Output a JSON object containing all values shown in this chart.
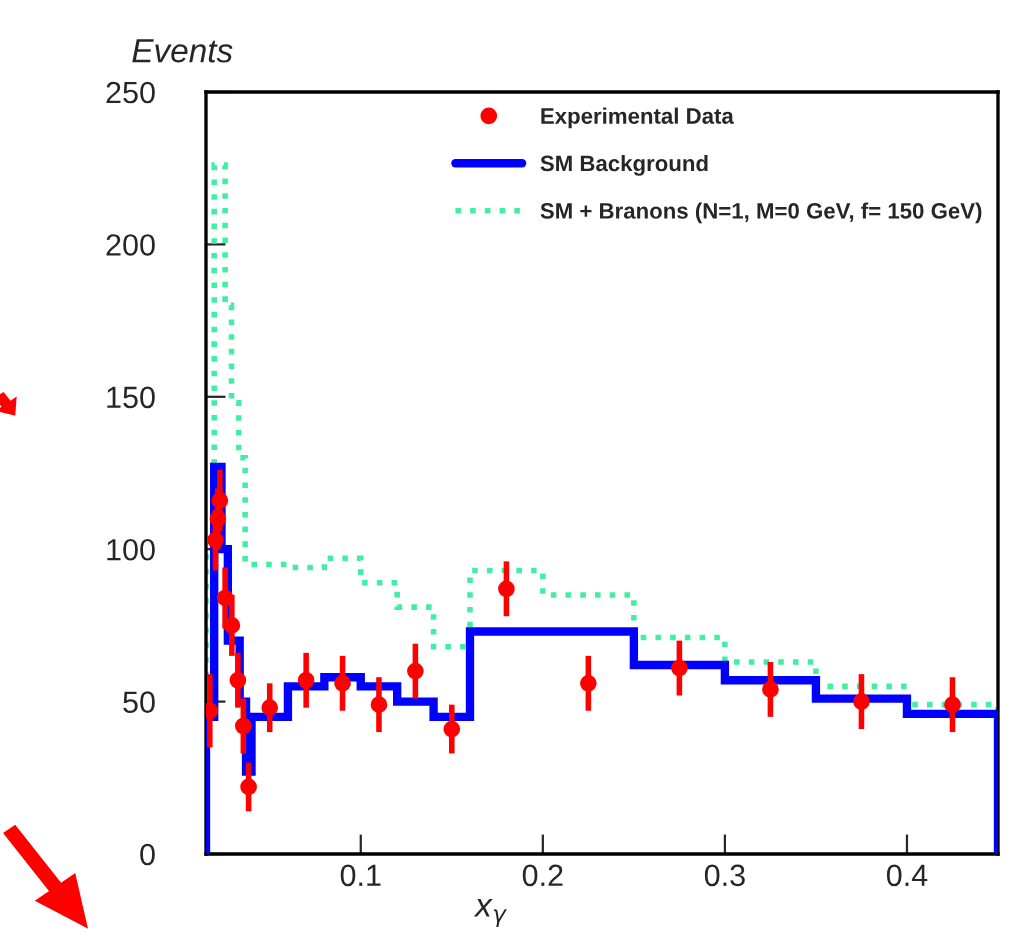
{
  "chart_data": {
    "type": "histogram",
    "xlabel": "x$_{γ}$",
    "ylabel": "Events",
    "xlim": [
      0.015,
      0.45
    ],
    "ylim": [
      0,
      250
    ],
    "xticks": [
      0.1,
      0.2,
      0.3,
      0.4
    ],
    "yticks": [
      0,
      50,
      100,
      150,
      200,
      250
    ],
    "grid": false,
    "legend": "top right",
    "series": [
      {
        "name": "Experimental Data",
        "type": "scatter",
        "color": "#ff0000",
        "marker": "circle",
        "x": [
          0.0171,
          0.0202,
          0.0215,
          0.0226,
          0.0255,
          0.0292,
          0.0325,
          0.0355,
          0.0384,
          0.05,
          0.07,
          0.09,
          0.11,
          0.13,
          0.15,
          0.18,
          0.225,
          0.275,
          0.325,
          0.375,
          0.425
        ],
        "values": [
          47,
          103,
          110,
          116,
          84,
          75,
          57,
          42,
          22,
          48,
          57,
          56,
          49,
          60,
          41,
          87,
          56,
          61,
          54,
          50,
          49
        ],
        "errors": [
          12,
          10,
          10,
          10,
          10,
          10,
          9,
          9,
          8,
          8,
          9,
          9,
          9,
          9,
          8,
          9,
          9,
          9,
          9,
          9,
          9
        ]
      },
      {
        "name": "SM Background",
        "color": "#0000ff",
        "line_style": "solid",
        "bins": [
          0.015,
          0.0195,
          0.0235,
          0.027,
          0.0335,
          0.037,
          0.04,
          0.06,
          0.08,
          0.1,
          0.12,
          0.14,
          0.16,
          0.25,
          0.3,
          0.35,
          0.4,
          0.45
        ],
        "values": [
          45,
          127,
          100,
          70,
          50,
          27,
          45,
          55,
          58,
          55,
          50,
          45,
          73,
          62,
          57,
          51,
          46
        ]
      },
      {
        "name": "SM + Branons (N=1, M=0 GeV, f= 150 GeV)",
        "color": "#40f0a0",
        "line_style": "dotted",
        "bins": [
          0.015,
          0.0195,
          0.0255,
          0.029,
          0.033,
          0.0365,
          0.06,
          0.08,
          0.1,
          0.12,
          0.14,
          0.16,
          0.2,
          0.25,
          0.3,
          0.35,
          0.4,
          0.45
        ],
        "values": [
          100,
          226,
          180,
          148,
          130,
          95,
          94,
          97,
          89,
          81,
          68,
          93,
          85,
          71,
          63,
          55,
          49
        ]
      }
    ]
  }
}
